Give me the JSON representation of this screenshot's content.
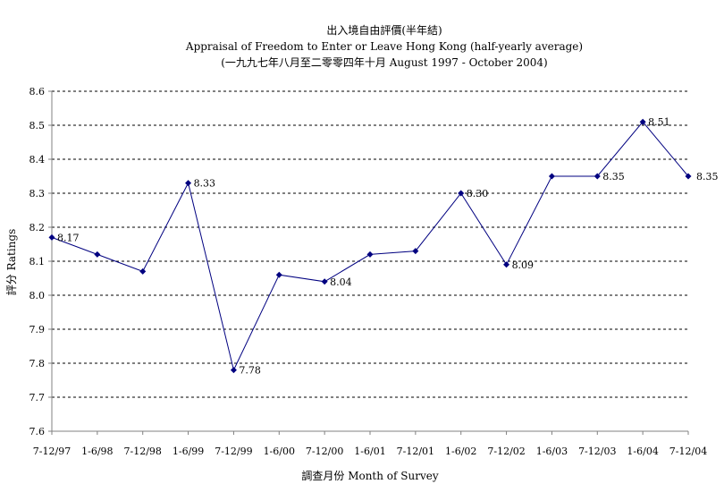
{
  "chart_data": {
    "type": "line",
    "title": "出入境自由評價(半年結)",
    "subtitle": "Appraisal of Freedom to Enter or Leave Hong Kong (half-yearly average)",
    "subtitle2": "(一九九七年八月至二零零四年十月 August 1997 - October 2004)",
    "xlabel": "調查月份 Month of Survey",
    "ylabel": "評分 Ratings",
    "ylim": [
      7.6,
      8.6
    ],
    "yticks": [
      "8.6",
      "8.5",
      "8.4",
      "8.3",
      "8.2",
      "8.1",
      "8.0",
      "7.9",
      "7.8",
      "7.7",
      "7.6"
    ],
    "categories": [
      "7-12/97",
      "1-6/98",
      "7-12/98",
      "1-6/99",
      "7-12/99",
      "1-6/00",
      "7-12/00",
      "1-6/01",
      "7-12/01",
      "1-6/02",
      "7-12/02",
      "1-6/03",
      "7-12/03",
      "1-6/04",
      "7-12/04"
    ],
    "values": [
      8.17,
      8.12,
      8.07,
      8.33,
      7.78,
      8.06,
      8.04,
      8.12,
      8.13,
      8.3,
      8.09,
      8.35,
      8.35,
      8.51,
      8.35
    ],
    "data_labels": [
      "8.17",
      "",
      "",
      "8.33",
      "7.78",
      "",
      "8.04",
      "",
      "",
      "8.30",
      "8.09",
      "",
      "8.35",
      "8.51",
      "8.35"
    ],
    "grid": true,
    "colors": {
      "line": "#000080",
      "marker": "#000080",
      "grid": "#000000",
      "axis": "#808080"
    }
  }
}
